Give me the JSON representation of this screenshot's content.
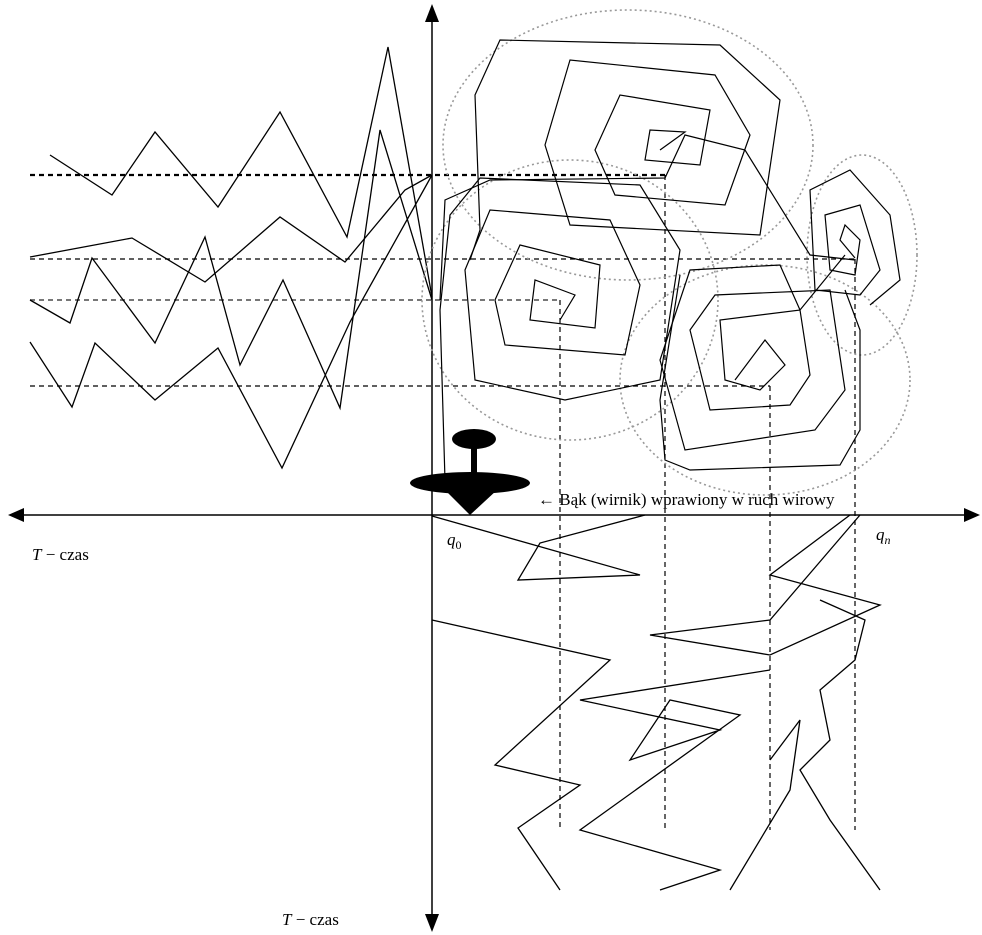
{
  "labels": {
    "spinning_top": "← Bąk (wirnik) wprawiony w ruch wirowy",
    "time_horizontal": {
      "symbol": "T",
      "text": "− czas"
    },
    "time_vertical": {
      "symbol": "T",
      "text": "− czas"
    },
    "q_start": {
      "symbol": "q",
      "sub": "0"
    },
    "q_end": {
      "symbol": "q",
      "sub": "n"
    }
  }
}
